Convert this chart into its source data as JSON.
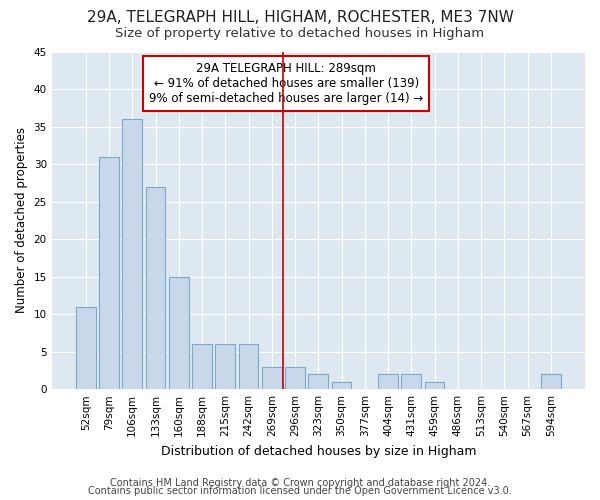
{
  "title1": "29A, TELEGRAPH HILL, HIGHAM, ROCHESTER, ME3 7NW",
  "title2": "Size of property relative to detached houses in Higham",
  "xlabel": "Distribution of detached houses by size in Higham",
  "ylabel": "Number of detached properties",
  "bar_labels": [
    "52sqm",
    "79sqm",
    "106sqm",
    "133sqm",
    "160sqm",
    "188sqm",
    "215sqm",
    "242sqm",
    "269sqm",
    "296sqm",
    "323sqm",
    "350sqm",
    "377sqm",
    "404sqm",
    "431sqm",
    "459sqm",
    "486sqm",
    "513sqm",
    "540sqm",
    "567sqm",
    "594sqm"
  ],
  "bar_values": [
    11,
    31,
    36,
    27,
    15,
    6,
    6,
    6,
    3,
    3,
    2,
    1,
    0,
    2,
    2,
    1,
    0,
    0,
    0,
    0,
    2
  ],
  "bar_color": "#c8d8ea",
  "bar_edge_color": "#7aaac8",
  "vline_x_index": 9,
  "vline_color": "#cc0000",
  "annotation_line1": "29A TELEGRAPH HILL: 289sqm",
  "annotation_line2": "← 91% of detached houses are smaller (139)",
  "annotation_line3": "9% of semi-detached houses are larger (14) →",
  "ylim": [
    0,
    45
  ],
  "yticks": [
    0,
    5,
    10,
    15,
    20,
    25,
    30,
    35,
    40,
    45
  ],
  "figure_bg_color": "#ffffff",
  "plot_bg_color": "#dde8f0",
  "grid_color": "#ffffff",
  "title1_fontsize": 11,
  "title2_fontsize": 9.5,
  "xlabel_fontsize": 9,
  "ylabel_fontsize": 8.5,
  "tick_fontsize": 7.5,
  "annot_fontsize": 8.5,
  "footer1": "Contains HM Land Registry data © Crown copyright and database right 2024.",
  "footer2": "Contains public sector information licensed under the Open Government Licence v3.0.",
  "footer_fontsize": 7
}
